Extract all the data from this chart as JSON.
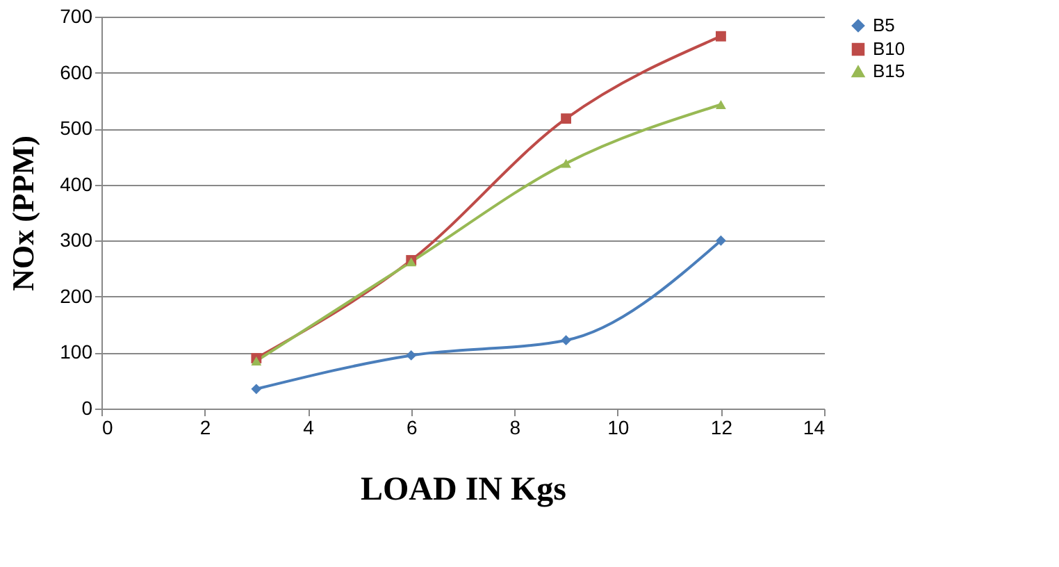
{
  "chart_data": {
    "type": "line",
    "xlabel": "LOAD IN Kgs",
    "ylabel": "NOx (PPM)",
    "x": [
      3,
      6,
      9,
      12
    ],
    "series": [
      {
        "name": "B5",
        "color": "#4a7ebb",
        "marker": "diamond",
        "values": [
          35,
          95,
          122,
          300
        ]
      },
      {
        "name": "B10",
        "color": "#be4b48",
        "marker": "square",
        "values": [
          90,
          265,
          518,
          665
        ]
      },
      {
        "name": "B15",
        "color": "#98b954",
        "marker": "triangle",
        "values": [
          85,
          262,
          438,
          543
        ]
      }
    ],
    "xlim": [
      0,
      14
    ],
    "xticks": [
      0,
      2,
      4,
      6,
      8,
      10,
      12,
      14
    ],
    "ylim": [
      0,
      700
    ],
    "yticks": [
      0,
      100,
      200,
      300,
      400,
      500,
      600,
      700
    ],
    "grid": "y",
    "legend": "right",
    "line_style": "solid"
  }
}
